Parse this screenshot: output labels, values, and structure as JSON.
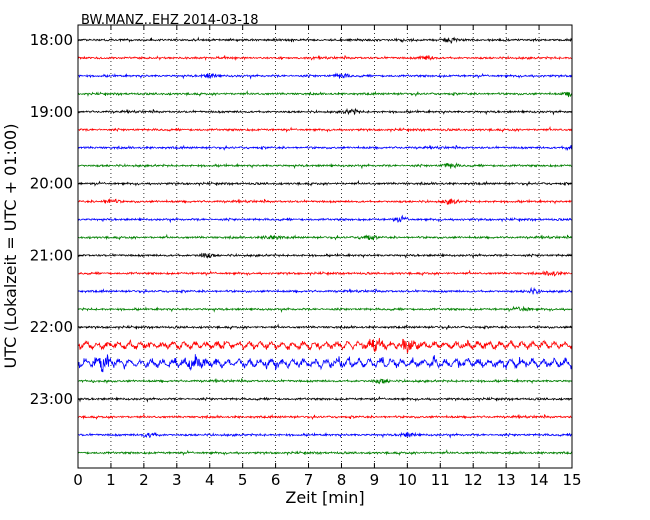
{
  "chart_data": {
    "type": "line",
    "title": "BW.MANZ..EHZ 2014-03-18",
    "xlabel": "Zeit  [min]",
    "ylabel": "UTC (Lokalzeit = UTC + 01:00)",
    "xlim": [
      0,
      15
    ],
    "x_ticks": [
      "0",
      "1",
      "2",
      "3",
      "4",
      "5",
      "6",
      "7",
      "8",
      "9",
      "10",
      "11",
      "12",
      "13",
      "14",
      "15"
    ],
    "y_tick_labels": [
      "18:00",
      "19:00",
      "20:00",
      "21:00",
      "22:00",
      "23:00"
    ],
    "grid": "vertical dotted",
    "trace_interval_min": 15,
    "trace_colors": [
      "#000000",
      "#ff0000",
      "#0000ff",
      "#008000"
    ],
    "traces": [
      {
        "start": "18:00",
        "amplitude": 1.0,
        "bursts": [
          11.3
        ]
      },
      {
        "start": "18:15",
        "amplitude": 1.0,
        "bursts": [
          10.6
        ]
      },
      {
        "start": "18:30",
        "amplitude": 1.0,
        "bursts": [
          4.0,
          8.0
        ]
      },
      {
        "start": "18:45",
        "amplitude": 1.0,
        "bursts": [
          15.0
        ]
      },
      {
        "start": "19:00",
        "amplitude": 1.0,
        "bursts": [
          8.3
        ]
      },
      {
        "start": "19:15",
        "amplitude": 1.0,
        "bursts": []
      },
      {
        "start": "19:30",
        "amplitude": 1.0,
        "bursts": [
          15.0
        ]
      },
      {
        "start": "19:45",
        "amplitude": 1.0,
        "bursts": [
          11.3
        ]
      },
      {
        "start": "20:00",
        "amplitude": 1.0,
        "bursts": []
      },
      {
        "start": "20:15",
        "amplitude": 1.0,
        "bursts": [
          1.0,
          11.3
        ]
      },
      {
        "start": "20:30",
        "amplitude": 1.0,
        "bursts": [
          9.8
        ]
      },
      {
        "start": "20:45",
        "amplitude": 1.0,
        "bursts": [
          5.9,
          8.8
        ]
      },
      {
        "start": "21:00",
        "amplitude": 1.0,
        "bursts": [
          3.9
        ]
      },
      {
        "start": "21:15",
        "amplitude": 1.0,
        "bursts": [
          14.4
        ]
      },
      {
        "start": "21:30",
        "amplitude": 1.0,
        "bursts": [
          13.8
        ]
      },
      {
        "start": "21:45",
        "amplitude": 1.0,
        "bursts": [
          13.5
        ]
      },
      {
        "start": "22:00",
        "amplitude": 1.0,
        "bursts": []
      },
      {
        "start": "22:15",
        "amplitude": 2.3,
        "bursts": [
          9.0,
          10.0
        ]
      },
      {
        "start": "22:30",
        "amplitude": 2.6,
        "bursts": [
          0.8,
          3.5
        ]
      },
      {
        "start": "22:45",
        "amplitude": 1.0,
        "bursts": [
          9.2
        ]
      },
      {
        "start": "23:00",
        "amplitude": 1.0,
        "bursts": []
      },
      {
        "start": "23:15",
        "amplitude": 1.0,
        "bursts": []
      },
      {
        "start": "23:30",
        "amplitude": 1.0,
        "bursts": [
          2.2,
          10.0
        ]
      },
      {
        "start": "23:45",
        "amplitude": 1.0,
        "bursts": []
      }
    ]
  }
}
